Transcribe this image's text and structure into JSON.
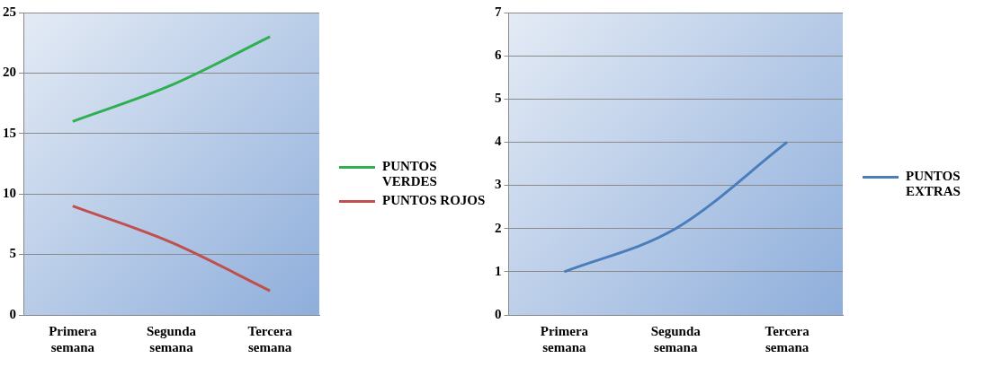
{
  "chart_data": [
    {
      "type": "line",
      "categories": [
        "Primera semana",
        "Segunda semana",
        "Tercera semana"
      ],
      "series": [
        {
          "name": "PUNTOS VERDES",
          "color": "#2eb050",
          "values": [
            16,
            19,
            23
          ]
        },
        {
          "name": "PUNTOS ROJOS",
          "color": "#c0504d",
          "values": [
            9,
            6,
            2
          ]
        }
      ],
      "ylim": [
        0,
        25
      ],
      "yticks": [
        0,
        5,
        10,
        15,
        20,
        25
      ],
      "grid": "y",
      "legend": "right",
      "marker": "none"
    },
    {
      "type": "line",
      "categories": [
        "Primera semana",
        "Segunda semana",
        "Tercera semana"
      ],
      "series": [
        {
          "name": "PUNTOS EXTRAS",
          "color": "#4a7ebb",
          "values": [
            1,
            2,
            4
          ]
        }
      ],
      "ylim": [
        0,
        7
      ],
      "yticks": [
        0,
        1,
        2,
        3,
        4,
        5,
        6,
        7
      ],
      "grid": "y",
      "legend": "right",
      "marker": "none"
    }
  ]
}
